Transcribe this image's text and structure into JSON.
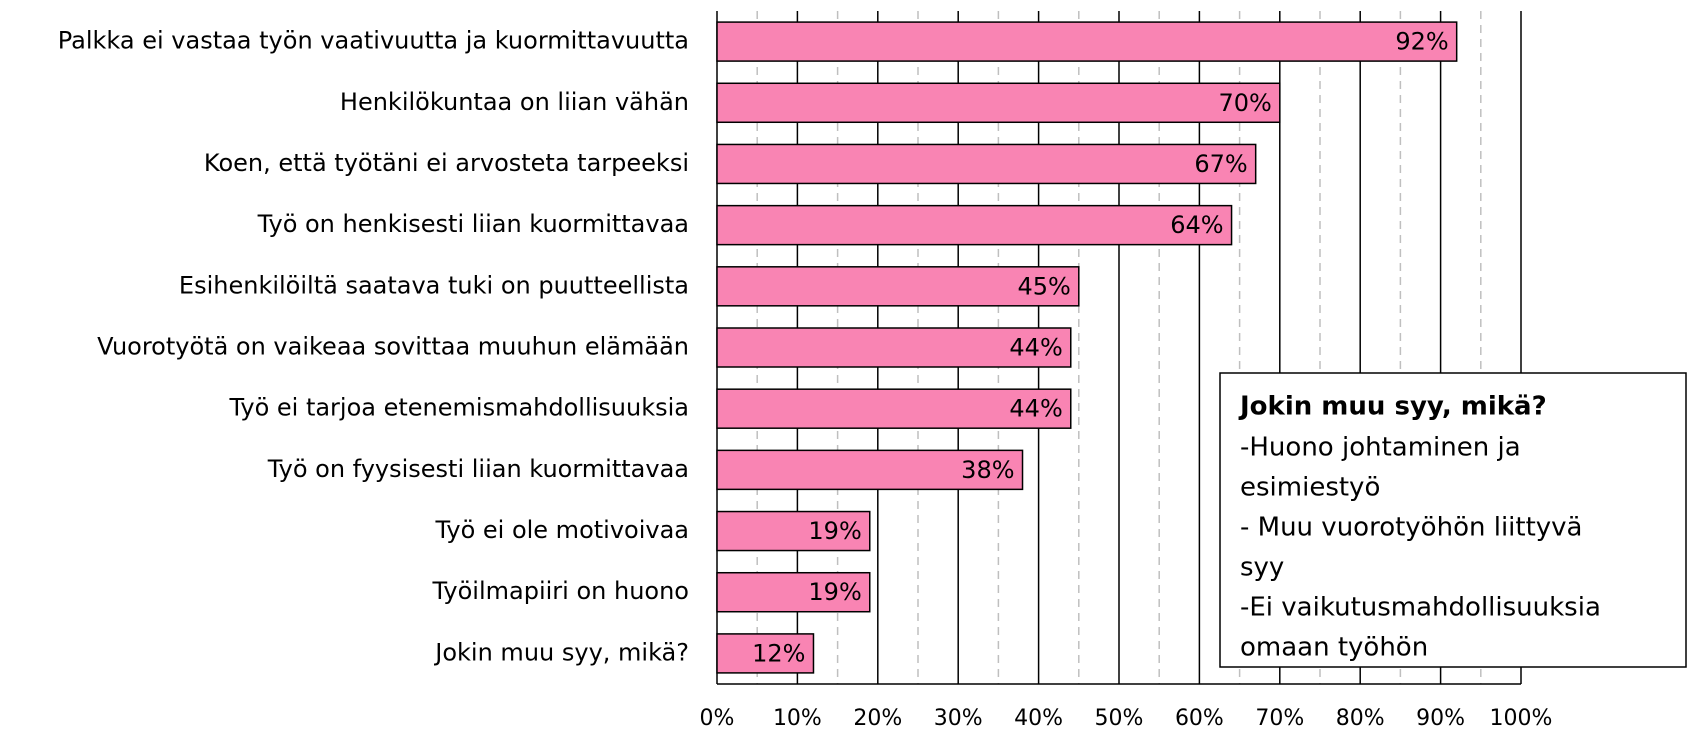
{
  "chart_data": {
    "type": "barh",
    "categories": [
      "Palkka ei vastaa työn vaativuutta ja kuormittavuutta",
      "Henkilökuntaa on liian vähän",
      "Koen, että työtäni ei arvosteta tarpeeksi",
      "Työ on henkisesti liian kuormittavaa",
      "Esihenkilöiltä saatava tuki on puutteellista",
      "Vuorotyötä on vaikeaa sovittaa muuhun elämään",
      "Työ ei tarjoa etenemismahdollisuuksia",
      "Työ on fyysisesti liian kuormittavaa",
      "Työ ei ole motivoivaa",
      "Työilmapiiri on huono",
      "Jokin muu syy, mikä?"
    ],
    "values": [
      92,
      70,
      67,
      64,
      45,
      44,
      44,
      38,
      19,
      19,
      12
    ],
    "value_labels": [
      "92%",
      "70%",
      "67%",
      "64%",
      "45%",
      "44%",
      "44%",
      "38%",
      "19%",
      "19%",
      "12%"
    ],
    "color": "#f984b3",
    "xlim": [
      0,
      100
    ],
    "xticks": [
      {
        "value": 0,
        "label": "0%"
      },
      {
        "value": 10,
        "label": "10%"
      },
      {
        "value": 20,
        "label": "20%"
      },
      {
        "value": 30,
        "label": "30%"
      },
      {
        "value": 40,
        "label": "40%"
      },
      {
        "value": 50,
        "label": "50%"
      },
      {
        "value": 60,
        "label": "60%"
      },
      {
        "value": 70,
        "label": "70%"
      },
      {
        "value": 80,
        "label": "80%"
      },
      {
        "value": 90,
        "label": "90%"
      },
      {
        "value": 100,
        "label": "100%"
      }
    ],
    "minor_xticks": [
      5,
      15,
      25,
      35,
      45,
      55,
      65,
      75,
      85,
      95
    ],
    "grid": true,
    "annotation": {
      "title": "Jokin muu syy, mikä?",
      "lines": [
        "-Huono johtaminen ja",
        "esimiestyö",
        "- Muu vuorotyöhön liittyvä",
        "syy",
        "-Ei vaikutusmahdollisuuksia",
        "omaan työhön"
      ]
    }
  }
}
